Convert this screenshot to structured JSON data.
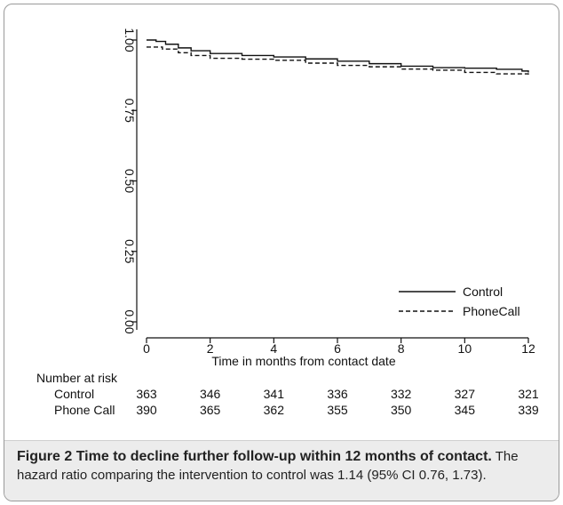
{
  "chart_data": {
    "type": "line",
    "title": "",
    "xlabel": "Time in months from contact date",
    "ylabel": "",
    "xlim": [
      0,
      12
    ],
    "ylim": [
      0,
      1
    ],
    "x_ticks": [
      0,
      2,
      4,
      6,
      8,
      10,
      12
    ],
    "x_tick_labels": [
      "0",
      "2",
      "4",
      "6",
      "8",
      "10",
      "12"
    ],
    "y_ticks": [
      0,
      0.25,
      0.5,
      0.75,
      1.0
    ],
    "y_tick_labels": [
      "0.00",
      "0.25",
      "0.50",
      "0.75",
      "1.00"
    ],
    "grid": false,
    "legend_position": "bottom-right",
    "series": [
      {
        "name": "Control",
        "line_style": "solid",
        "color": "#111111",
        "points": [
          [
            0,
            1.0
          ],
          [
            0.3,
            0.995
          ],
          [
            0.6,
            0.985
          ],
          [
            1.0,
            0.972
          ],
          [
            1.4,
            0.962
          ],
          [
            2.0,
            0.952
          ],
          [
            3.0,
            0.945
          ],
          [
            4.0,
            0.94
          ],
          [
            5.0,
            0.933
          ],
          [
            6.0,
            0.925
          ],
          [
            7.0,
            0.916
          ],
          [
            8.0,
            0.907
          ],
          [
            9.0,
            0.902
          ],
          [
            10.0,
            0.9
          ],
          [
            11.0,
            0.896
          ],
          [
            11.8,
            0.89
          ],
          [
            12.0,
            0.885
          ]
        ]
      },
      {
        "name": "PhoneCall",
        "line_style": "dashed",
        "color": "#111111",
        "points": [
          [
            0,
            0.975
          ],
          [
            0.5,
            0.968
          ],
          [
            1.0,
            0.955
          ],
          [
            1.4,
            0.945
          ],
          [
            2.0,
            0.935
          ],
          [
            3.0,
            0.932
          ],
          [
            4.0,
            0.928
          ],
          [
            5.0,
            0.918
          ],
          [
            6.0,
            0.91
          ],
          [
            7.0,
            0.905
          ],
          [
            8.0,
            0.897
          ],
          [
            9.0,
            0.893
          ],
          [
            10.0,
            0.885
          ],
          [
            11.0,
            0.88
          ],
          [
            12.0,
            0.87
          ]
        ]
      }
    ],
    "risk_table": {
      "title": "Number at risk",
      "times": [
        0,
        2,
        4,
        6,
        8,
        10,
        12
      ],
      "rows": [
        {
          "label": "Control",
          "values": [
            "363",
            "346",
            "341",
            "336",
            "332",
            "327",
            "321"
          ]
        },
        {
          "label": "Phone Call",
          "values": [
            "390",
            "365",
            "362",
            "355",
            "350",
            "345",
            "339"
          ]
        }
      ]
    }
  },
  "caption": {
    "label": "Figure 2",
    "title": "Time to decline further follow-up within 12 months of contact.",
    "text": "The hazard ratio comparing the intervention to control was 1.14 (95% CI 0.76, 1.73)."
  }
}
